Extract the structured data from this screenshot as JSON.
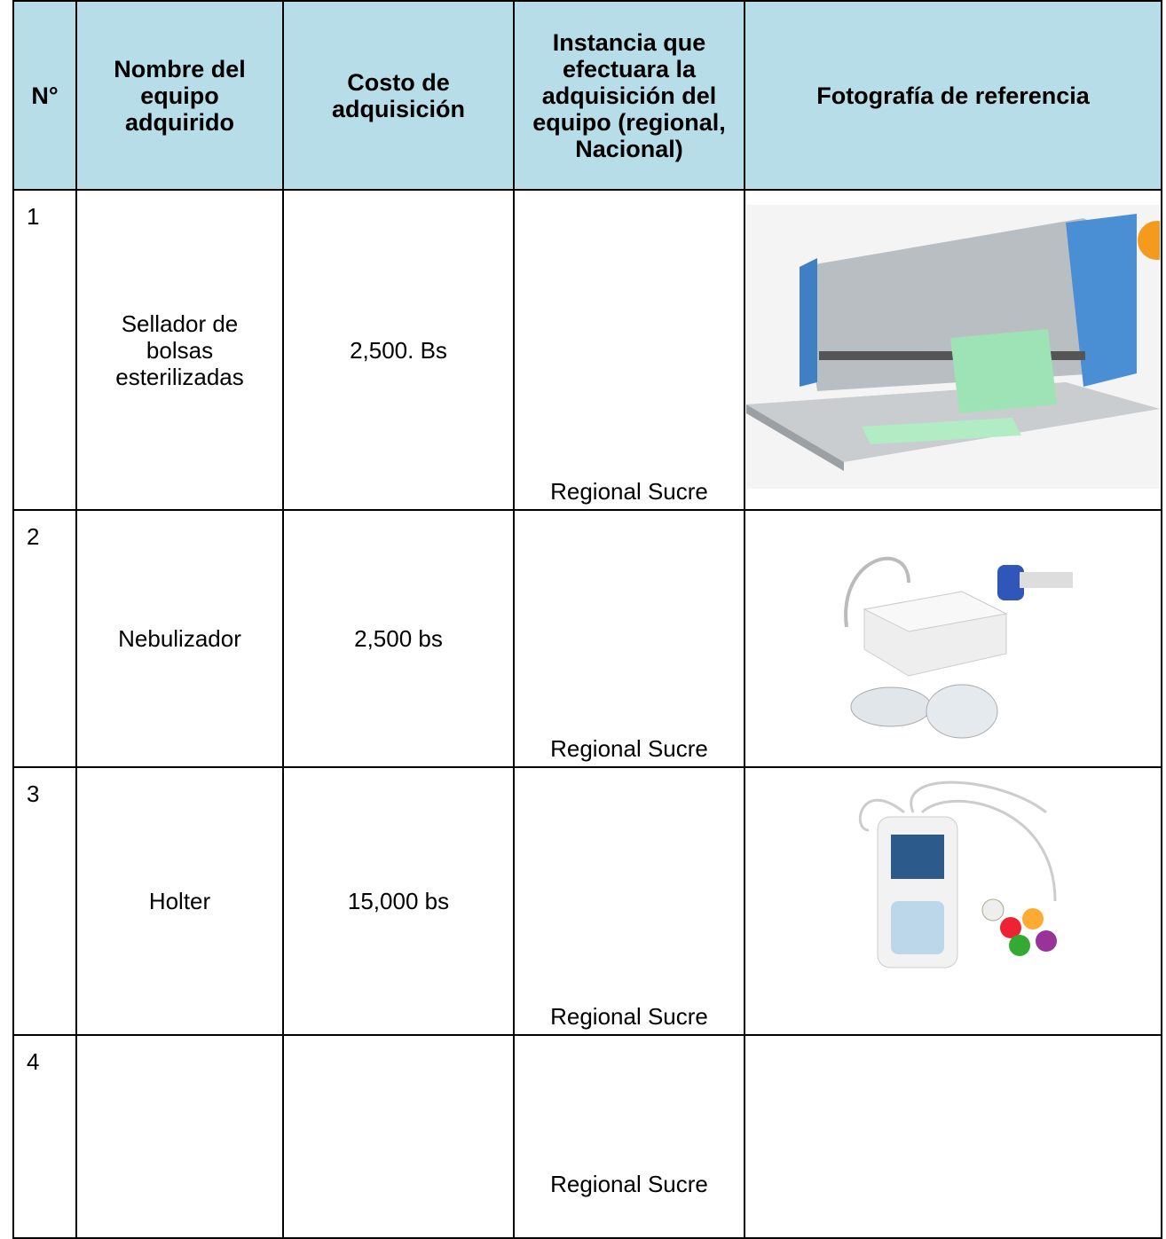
{
  "header": {
    "columns": [
      "N°",
      "Nombre del equipo adquirido",
      "Costo de adquisición",
      "Instancia que efectuara la adquisición del equipo (regional, Nacional)",
      "Fotografía de referencia"
    ]
  },
  "table": {
    "rows": [
      {
        "number": "1",
        "name": "Sellador de bolsas esterilizadas",
        "cost": "2,500. Bs",
        "instancia": "Regional Sucre"
      },
      {
        "number": "2",
        "name": "Nebulizador",
        "cost": "2,500 bs",
        "instancia": "Regional Sucre"
      },
      {
        "number": "3",
        "name": "Holter",
        "cost": "15,000 bs",
        "instancia": "Regional Sucre"
      },
      {
        "number": "4",
        "instancia": "Regional Sucre"
      }
    ]
  }
}
